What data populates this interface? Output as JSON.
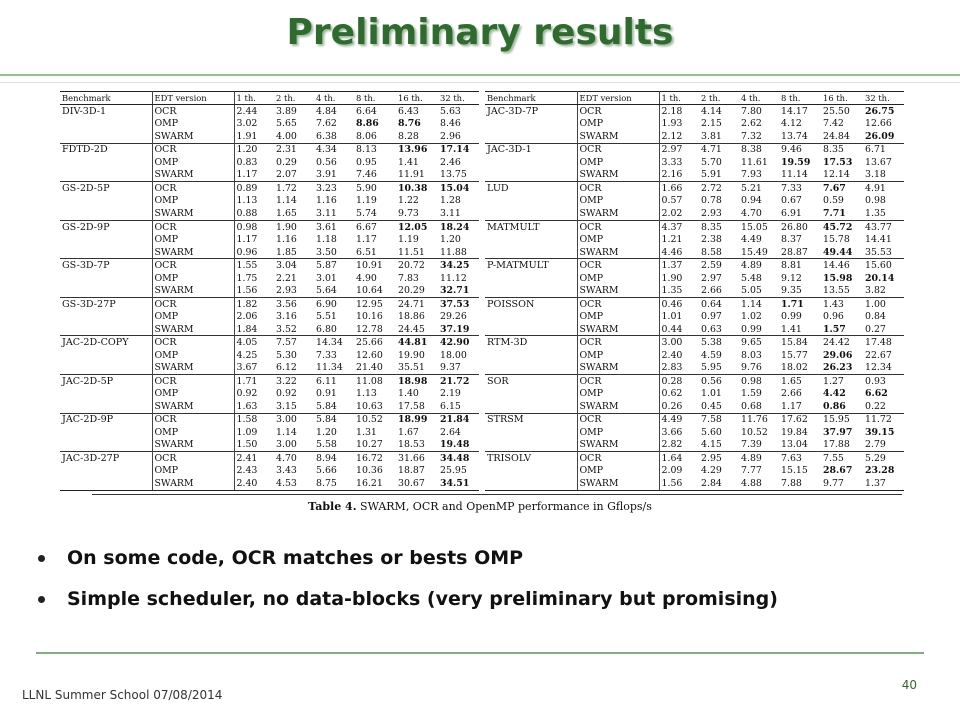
{
  "slide": {
    "title": "Preliminary results",
    "caption_label": "Table 4.",
    "caption_text": "SWARM, OCR and OpenMP performance in Gflops/s",
    "bullets": [
      "On some code, OCR matches or bests OMP",
      "Simple scheduler, no data-blocks (very preliminary but promising)"
    ],
    "footer_left": "LLNL Summer School 07/08/2014",
    "page_number": "40"
  },
  "table": {
    "headers": [
      "Benchmark",
      "EDT version",
      "1 th.",
      "2 th.",
      "4 th.",
      "8 th.",
      "16 th.",
      "32 th."
    ],
    "left": [
      {
        "name": "DIV-3D-1",
        "rows": [
          {
            "v": "OCR",
            "c": [
              "2.44",
              "3.89",
              "4.84",
              "6.64",
              "6.43",
              "5.63"
            ],
            "b": []
          },
          {
            "v": "OMP",
            "c": [
              "3.02",
              "5.65",
              "7.62",
              "8.86",
              "8.76",
              "8.46"
            ],
            "b": [
              3,
              4
            ]
          },
          {
            "v": "SWARM",
            "c": [
              "1.91",
              "4.00",
              "6.38",
              "8.06",
              "8.28",
              "2.96"
            ],
            "b": []
          }
        ]
      },
      {
        "name": "FDTD-2D",
        "rows": [
          {
            "v": "OCR",
            "c": [
              "1.20",
              "2.31",
              "4.34",
              "8.13",
              "13.96",
              "17.14"
            ],
            "b": [
              4,
              5
            ]
          },
          {
            "v": "OMP",
            "c": [
              "0.83",
              "0.29",
              "0.56",
              "0.95",
              "1.41",
              "2.46"
            ],
            "b": []
          },
          {
            "v": "SWARM",
            "c": [
              "1.17",
              "2.07",
              "3.91",
              "7.46",
              "11.91",
              "13.75"
            ],
            "b": []
          }
        ]
      },
      {
        "name": "GS-2D-5P",
        "rows": [
          {
            "v": "OCR",
            "c": [
              "0.89",
              "1.72",
              "3.23",
              "5.90",
              "10.38",
              "15.04"
            ],
            "b": [
              4,
              5
            ]
          },
          {
            "v": "OMP",
            "c": [
              "1.13",
              "1.14",
              "1.16",
              "1.19",
              "1.22",
              "1.28"
            ],
            "b": []
          },
          {
            "v": "SWARM",
            "c": [
              "0.88",
              "1.65",
              "3.11",
              "5.74",
              "9.73",
              "3.11"
            ],
            "b": []
          }
        ]
      },
      {
        "name": "GS-2D-9P",
        "rows": [
          {
            "v": "OCR",
            "c": [
              "0.98",
              "1.90",
              "3.61",
              "6.67",
              "12.05",
              "18.24"
            ],
            "b": [
              4,
              5
            ]
          },
          {
            "v": "OMP",
            "c": [
              "1.17",
              "1.16",
              "1.18",
              "1.17",
              "1.19",
              "1.20"
            ],
            "b": []
          },
          {
            "v": "SWARM",
            "c": [
              "0.96",
              "1.85",
              "3.50",
              "6.51",
              "11.51",
              "11.88"
            ],
            "b": []
          }
        ]
      },
      {
        "name": "GS-3D-7P",
        "rows": [
          {
            "v": "OCR",
            "c": [
              "1.55",
              "3.04",
              "5.87",
              "10.91",
              "20.72",
              "34.25"
            ],
            "b": [
              5
            ]
          },
          {
            "v": "OMP",
            "c": [
              "1.75",
              "2.21",
              "3.01",
              "4.90",
              "7.83",
              "11.12"
            ],
            "b": []
          },
          {
            "v": "SWARM",
            "c": [
              "1.56",
              "2.93",
              "5.64",
              "10.64",
              "20.29",
              "32.71"
            ],
            "b": [
              5
            ]
          }
        ]
      },
      {
        "name": "GS-3D-27P",
        "rows": [
          {
            "v": "OCR",
            "c": [
              "1.82",
              "3.56",
              "6.90",
              "12.95",
              "24.71",
              "37.53"
            ],
            "b": [
              5
            ]
          },
          {
            "v": "OMP",
            "c": [
              "2.06",
              "3.16",
              "5.51",
              "10.16",
              "18.86",
              "29.26"
            ],
            "b": []
          },
          {
            "v": "SWARM",
            "c": [
              "1.84",
              "3.52",
              "6.80",
              "12.78",
              "24.45",
              "37.19"
            ],
            "b": [
              5
            ]
          }
        ]
      },
      {
        "name": "JAC-2D-COPY",
        "rows": [
          {
            "v": "OCR",
            "c": [
              "4.05",
              "7.57",
              "14.34",
              "25.66",
              "44.81",
              "42.90"
            ],
            "b": [
              4,
              5
            ]
          },
          {
            "v": "OMP",
            "c": [
              "4.25",
              "5.30",
              "7.33",
              "12.60",
              "19.90",
              "18.00"
            ],
            "b": []
          },
          {
            "v": "SWARM",
            "c": [
              "3.67",
              "6.12",
              "11.34",
              "21.40",
              "35.51",
              "9.37"
            ],
            "b": []
          }
        ]
      },
      {
        "name": "JAC-2D-5P",
        "rows": [
          {
            "v": "OCR",
            "c": [
              "1.71",
              "3.22",
              "6.11",
              "11.08",
              "18.98",
              "21.72"
            ],
            "b": [
              4,
              5
            ]
          },
          {
            "v": "OMP",
            "c": [
              "0.92",
              "0.92",
              "0.91",
              "1.13",
              "1.40",
              "2.19"
            ],
            "b": []
          },
          {
            "v": "SWARM",
            "c": [
              "1.63",
              "3.15",
              "5.84",
              "10.63",
              "17.58",
              "6.15"
            ],
            "b": []
          }
        ]
      },
      {
        "name": "JAC-2D-9P",
        "rows": [
          {
            "v": "OCR",
            "c": [
              "1.58",
              "3.00",
              "5.84",
              "10.52",
              "18.99",
              "21.84"
            ],
            "b": [
              4,
              5
            ]
          },
          {
            "v": "OMP",
            "c": [
              "1.09",
              "1.14",
              "1.20",
              "1.31",
              "1.67",
              "2.64"
            ],
            "b": []
          },
          {
            "v": "SWARM",
            "c": [
              "1.50",
              "3.00",
              "5.58",
              "10.27",
              "18.53",
              "19.48"
            ],
            "b": [
              5
            ]
          }
        ]
      },
      {
        "name": "JAC-3D-27P",
        "rows": [
          {
            "v": "OCR",
            "c": [
              "2.41",
              "4.70",
              "8.94",
              "16.72",
              "31.66",
              "34.48"
            ],
            "b": [
              5
            ]
          },
          {
            "v": "OMP",
            "c": [
              "2.43",
              "3.43",
              "5.66",
              "10.36",
              "18.87",
              "25.95"
            ],
            "b": []
          },
          {
            "v": "SWARM",
            "c": [
              "2.40",
              "4.53",
              "8.75",
              "16.21",
              "30.67",
              "34.51"
            ],
            "b": [
              5
            ]
          }
        ]
      }
    ],
    "right": [
      {
        "name": "JAC-3D-7P",
        "rows": [
          {
            "v": "OCR",
            "c": [
              "2.18",
              "4.14",
              "7.80",
              "14.17",
              "25.50",
              "26.75"
            ],
            "b": [
              5
            ]
          },
          {
            "v": "OMP",
            "c": [
              "1.93",
              "2.15",
              "2.62",
              "4.12",
              "7.42",
              "12.66"
            ],
            "b": []
          },
          {
            "v": "SWARM",
            "c": [
              "2.12",
              "3.81",
              "7.32",
              "13.74",
              "24.84",
              "26.09"
            ],
            "b": [
              5
            ]
          }
        ]
      },
      {
        "name": "JAC-3D-1",
        "rows": [
          {
            "v": "OCR",
            "c": [
              "2.97",
              "4.71",
              "8.38",
              "9.46",
              "8.35",
              "6.71"
            ],
            "b": []
          },
          {
            "v": "OMP",
            "c": [
              "3.33",
              "5.70",
              "11.61",
              "19.59",
              "17.53",
              "13.67"
            ],
            "b": [
              3,
              4
            ]
          },
          {
            "v": "SWARM",
            "c": [
              "2.16",
              "5.91",
              "7.93",
              "11.14",
              "12.14",
              "3.18"
            ],
            "b": []
          }
        ]
      },
      {
        "name": "LUD",
        "rows": [
          {
            "v": "OCR",
            "c": [
              "1.66",
              "2.72",
              "5.21",
              "7.33",
              "7.67",
              "4.91"
            ],
            "b": [
              4
            ]
          },
          {
            "v": "OMP",
            "c": [
              "0.57",
              "0.78",
              "0.94",
              "0.67",
              "0.59",
              "0.98"
            ],
            "b": []
          },
          {
            "v": "SWARM",
            "c": [
              "2.02",
              "2.93",
              "4.70",
              "6.91",
              "7.71",
              "1.35"
            ],
            "b": [
              4
            ]
          }
        ]
      },
      {
        "name": "MATMULT",
        "rows": [
          {
            "v": "OCR",
            "c": [
              "4.37",
              "8.35",
              "15.05",
              "26.80",
              "45.72",
              "43.77"
            ],
            "b": [
              4
            ]
          },
          {
            "v": "OMP",
            "c": [
              "1.21",
              "2.38",
              "4.49",
              "8.37",
              "15.78",
              "14.41"
            ],
            "b": []
          },
          {
            "v": "SWARM",
            "c": [
              "4.46",
              "8.58",
              "15.49",
              "28.87",
              "49.44",
              "35.53"
            ],
            "b": [
              4
            ]
          }
        ]
      },
      {
        "name": "P-MATMULT",
        "rows": [
          {
            "v": "OCR",
            "c": [
              "1.37",
              "2.59",
              "4.89",
              "8.81",
              "14.46",
              "15.60"
            ],
            "b": []
          },
          {
            "v": "OMP",
            "c": [
              "1.90",
              "2.97",
              "5.48",
              "9.12",
              "15.98",
              "20.14"
            ],
            "b": [
              4,
              5
            ]
          },
          {
            "v": "SWARM",
            "c": [
              "1.35",
              "2.66",
              "5.05",
              "9.35",
              "13.55",
              "3.82"
            ],
            "b": []
          }
        ]
      },
      {
        "name": "POISSON",
        "rows": [
          {
            "v": "OCR",
            "c": [
              "0.46",
              "0.64",
              "1.14",
              "1.71",
              "1.43",
              "1.00"
            ],
            "b": [
              3
            ]
          },
          {
            "v": "OMP",
            "c": [
              "1.01",
              "0.97",
              "1.02",
              "0.99",
              "0.96",
              "0.84"
            ],
            "b": []
          },
          {
            "v": "SWARM",
            "c": [
              "0.44",
              "0.63",
              "0.99",
              "1.41",
              "1.57",
              "0.27"
            ],
            "b": [
              4
            ]
          }
        ]
      },
      {
        "name": "RTM-3D",
        "rows": [
          {
            "v": "OCR",
            "c": [
              "3.00",
              "5.38",
              "9.65",
              "15.84",
              "24.42",
              "17.48"
            ],
            "b": []
          },
          {
            "v": "OMP",
            "c": [
              "2.40",
              "4.59",
              "8.03",
              "15.77",
              "29.06",
              "22.67"
            ],
            "b": [
              4
            ]
          },
          {
            "v": "SWARM",
            "c": [
              "2.83",
              "5.95",
              "9.76",
              "18.02",
              "26.23",
              "12.34"
            ],
            "b": [
              4
            ]
          }
        ]
      },
      {
        "name": "SOR",
        "rows": [
          {
            "v": "OCR",
            "c": [
              "0.28",
              "0.56",
              "0.98",
              "1.65",
              "1.27",
              "0.93"
            ],
            "b": []
          },
          {
            "v": "OMP",
            "c": [
              "0.62",
              "1.01",
              "1.59",
              "2.66",
              "4.42",
              "6.62"
            ],
            "b": [
              4,
              5
            ]
          },
          {
            "v": "SWARM",
            "c": [
              "0.26",
              "0.45",
              "0.68",
              "1.17",
              "0.86",
              "0.22"
            ],
            "b": [
              4
            ]
          }
        ]
      },
      {
        "name": "STRSM",
        "rows": [
          {
            "v": "OCR",
            "c": [
              "4.49",
              "7.58",
              "11.76",
              "17.62",
              "15.95",
              "11.72"
            ],
            "b": []
          },
          {
            "v": "OMP",
            "c": [
              "3.66",
              "5.60",
              "10.52",
              "19.84",
              "37.97",
              "39.15"
            ],
            "b": [
              4,
              5
            ]
          },
          {
            "v": "SWARM",
            "c": [
              "2.82",
              "4.15",
              "7.39",
              "13.04",
              "17.88",
              "2.79"
            ],
            "b": []
          }
        ]
      },
      {
        "name": "TRISOLV",
        "rows": [
          {
            "v": "OCR",
            "c": [
              "1.64",
              "2.95",
              "4.89",
              "7.63",
              "7.55",
              "5.29"
            ],
            "b": []
          },
          {
            "v": "OMP",
            "c": [
              "2.09",
              "4.29",
              "7.77",
              "15.15",
              "28.67",
              "23.28"
            ],
            "b": [
              4,
              5
            ]
          },
          {
            "v": "SWARM",
            "c": [
              "1.56",
              "2.84",
              "4.88",
              "7.88",
              "9.77",
              "1.37"
            ],
            "b": []
          }
        ]
      }
    ]
  }
}
